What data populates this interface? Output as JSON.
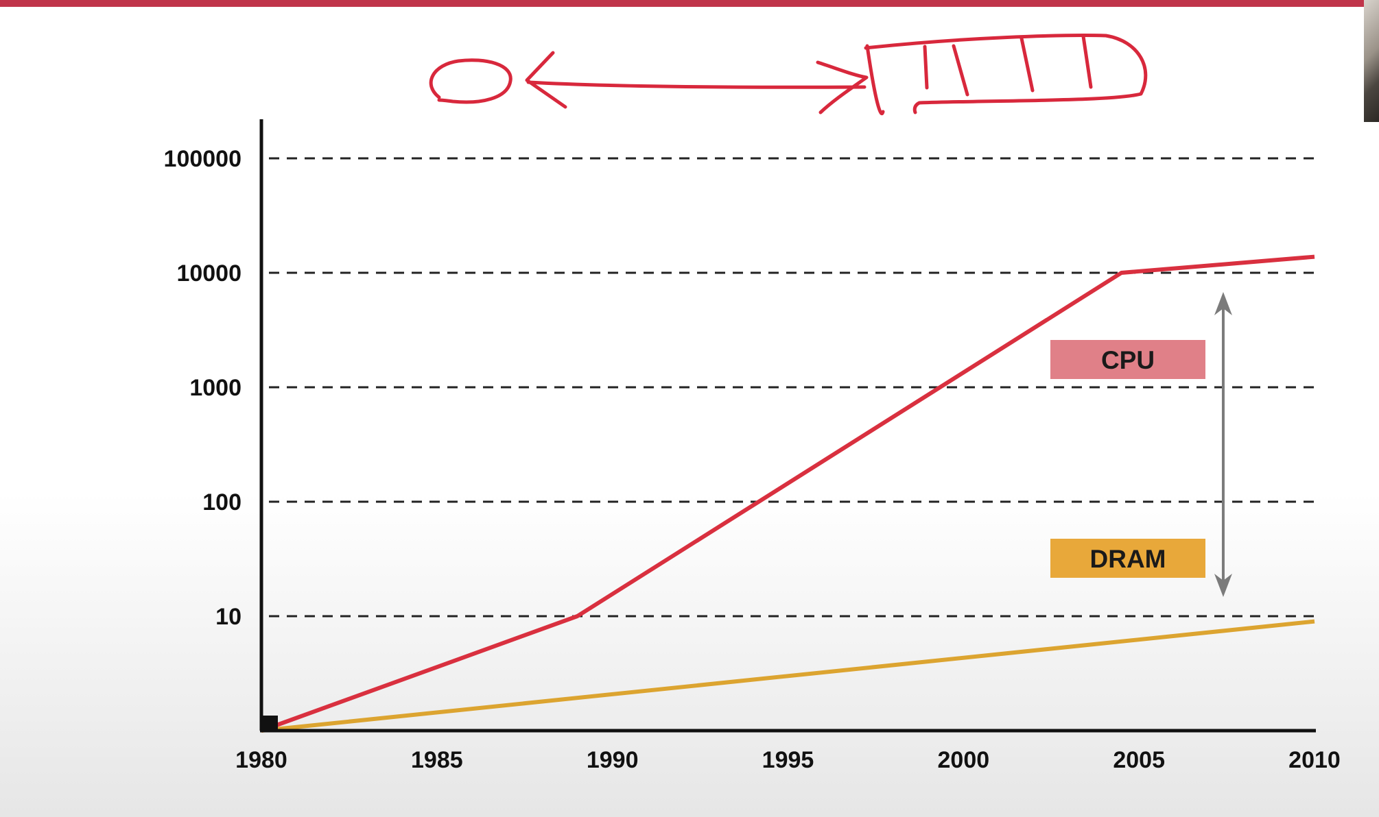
{
  "colors": {
    "top_bar": "#c0354a",
    "ink": "#d8283c",
    "cpu_line": "#d9303f",
    "dram_line": "#dca430",
    "cpu_legend_bg": "#e08088",
    "dram_legend_bg": "#e8a83a",
    "gap_arrow": "#7b7b7b",
    "axis": "#111111",
    "grid": "#222222"
  },
  "chart_data": {
    "type": "line",
    "title": "",
    "xlabel": "",
    "ylabel": "",
    "y_scale": "log",
    "xlim": [
      1980,
      2010
    ],
    "ylim": [
      1,
      100000
    ],
    "grid": "horizontal dashed",
    "x_ticks": [
      "1980",
      "1985",
      "1990",
      "1995",
      "2000",
      "2005",
      "2010"
    ],
    "y_ticks": [
      "100000",
      "10000",
      "1000",
      "100",
      "10"
    ],
    "y_tick_values": [
      100000,
      10000,
      1000,
      100,
      10
    ],
    "series": [
      {
        "name": "CPU",
        "color": "#d9303f",
        "points": [
          [
            1980,
            1
          ],
          [
            1989,
            10
          ],
          [
            2004.5,
            10000
          ],
          [
            2010,
            13800
          ]
        ]
      },
      {
        "name": "DRAM",
        "color": "#dca430",
        "points": [
          [
            1980,
            1
          ],
          [
            2010,
            9
          ]
        ]
      }
    ],
    "legend": [
      "CPU",
      "DRAM"
    ],
    "legend_placement": "right",
    "annotations": [
      {
        "type": "double-arrow",
        "x": 2007.4,
        "y_from": 10,
        "y_to": 10000,
        "meaning": "performance gap"
      }
    ]
  }
}
